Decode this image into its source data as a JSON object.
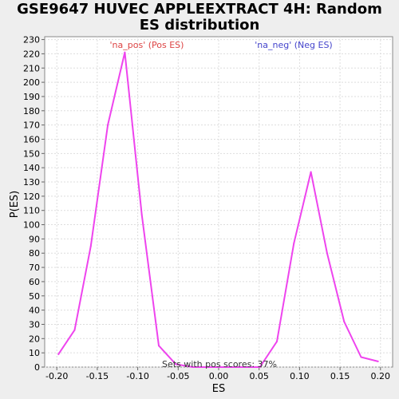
{
  "chart_data": {
    "type": "line",
    "title_line1": "GSE9647 HUVEC APPLEEXTRACT 4H: Random",
    "title_line2": "ES distribution",
    "xlabel": "ES",
    "ylabel": "P(ES)",
    "xlim": [
      -0.215,
      0.215
    ],
    "ylim": [
      0,
      232
    ],
    "xticks": [
      -0.2,
      -0.15,
      -0.1,
      -0.05,
      0.0,
      0.05,
      0.1,
      0.15,
      0.2
    ],
    "xtick_labels": [
      "-0.20",
      "-0.15",
      "-0.10",
      "-0.05",
      "0.00",
      "0.05",
      "0.10",
      "0.15",
      "0.20"
    ],
    "yticks": [
      0,
      10,
      20,
      30,
      40,
      50,
      60,
      70,
      80,
      90,
      100,
      110,
      120,
      130,
      140,
      150,
      160,
      170,
      180,
      190,
      200,
      210,
      220,
      230
    ],
    "grid": true,
    "line_color": "#ee44ee",
    "series": [
      {
        "x": [
          -0.198,
          -0.178,
          -0.158,
          -0.137,
          -0.116,
          -0.095,
          -0.074,
          -0.053,
          -0.032,
          -0.011,
          0.01,
          0.031,
          0.051,
          0.072,
          0.093,
          0.114,
          0.134,
          0.155,
          0.176,
          0.197
        ],
        "values": [
          9,
          26,
          85,
          170,
          221,
          107,
          15,
          2,
          0,
          0,
          0,
          0,
          0,
          18,
          87,
          137,
          80,
          32,
          7,
          4
        ]
      }
    ],
    "annotations": [
      {
        "text": "'na_pos' (Pos ES)",
        "color": "#dd4444"
      },
      {
        "text": "'na_neg' (Neg ES)",
        "color": "#4444cc"
      },
      {
        "text": "Sets with pos scores: 37%",
        "color": "#333333"
      }
    ]
  }
}
